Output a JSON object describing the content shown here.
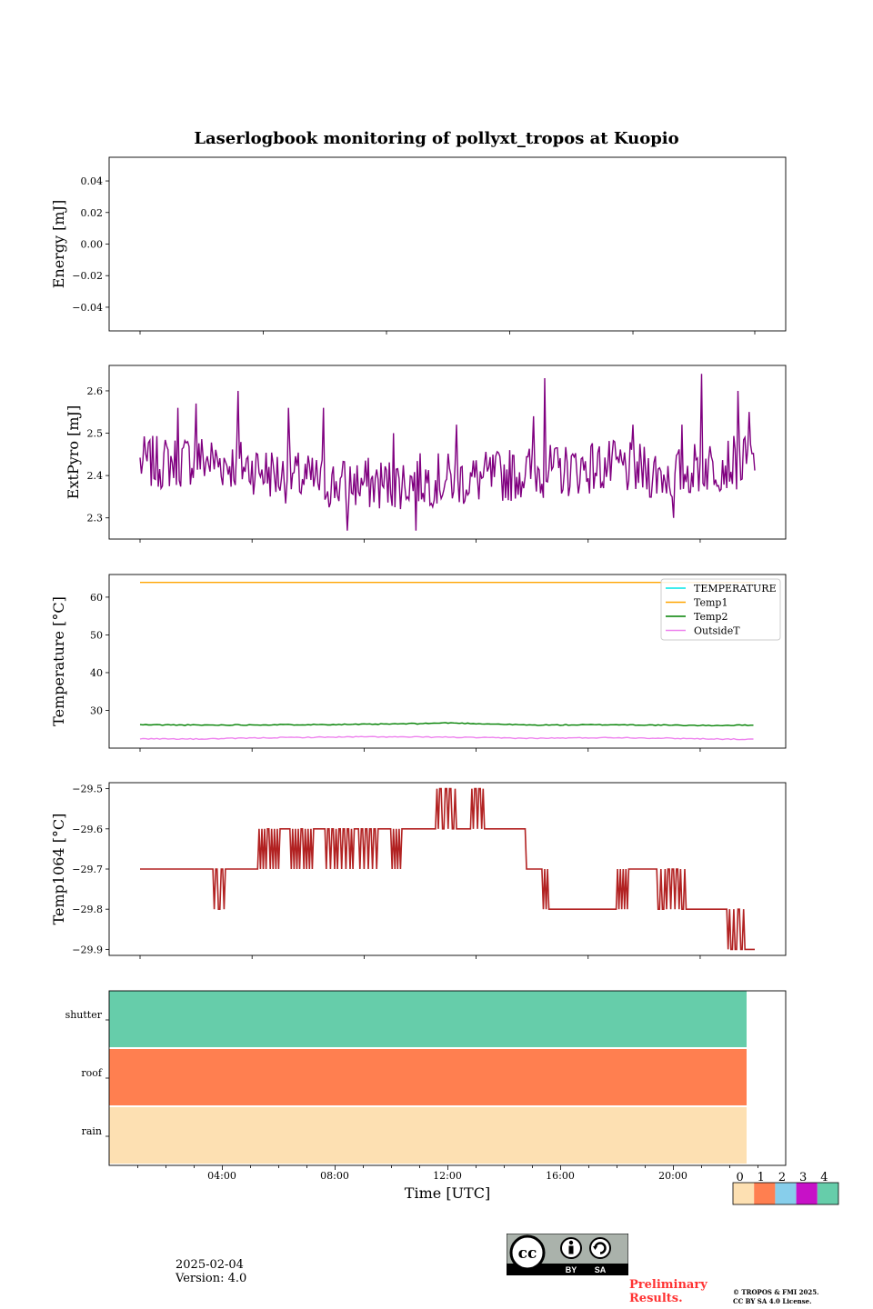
{
  "figure": {
    "title": "Laserlogbook monitoring of pollyxt_tropos at Kuopio",
    "date": "2025-02-04",
    "version": "Version: 4.0",
    "preliminary": [
      "Preliminary",
      "Results."
    ],
    "copyright": [
      "© TROPOS & FMI 2025.",
      "CC BY SA 4.0 License."
    ],
    "license_badge": {
      "by": "BY",
      "sa": "SA",
      "cc": "cc"
    }
  },
  "chart_data": [
    {
      "type": "line",
      "title": "Laserlogbook monitoring of pollyxt_tropos at Kuopio",
      "ylabel": "Energy [mJ]",
      "xlim": [
        0,
        24
      ],
      "ylim": [
        -0.055,
        0.055
      ],
      "yticks": [
        -0.04,
        -0.02,
        0.0,
        0.02,
        0.04
      ],
      "ytick_labels": [
        "−0.04",
        "−0.02",
        "0.00",
        "0.02",
        "0.04"
      ],
      "series": []
    },
    {
      "type": "line",
      "ylabel": "ExtPyro [mJ]",
      "xlim": [
        0,
        24
      ],
      "ylim": [
        2.25,
        2.66
      ],
      "yticks": [
        2.3,
        2.4,
        2.5,
        2.6
      ],
      "ytick_labels": [
        "2.3",
        "2.4",
        "2.5",
        "2.6"
      ],
      "series": [
        {
          "color": "#800080",
          "x_start": 1.0,
          "x_end": 22.95,
          "x_step": 0.05,
          "mean_profile": [
            [
              1.0,
              2.43
            ],
            [
              2.0,
              2.43
            ],
            [
              3.0,
              2.44
            ],
            [
              4.0,
              2.43
            ],
            [
              5.0,
              2.42
            ],
            [
              6.0,
              2.4
            ],
            [
              7.0,
              2.39
            ],
            [
              8.0,
              2.38
            ],
            [
              9.0,
              2.38
            ],
            [
              10.0,
              2.38
            ],
            [
              11.0,
              2.39
            ],
            [
              12.0,
              2.39
            ],
            [
              13.0,
              2.39
            ],
            [
              14.0,
              2.4
            ],
            [
              15.0,
              2.41
            ],
            [
              16.0,
              2.41
            ],
            [
              17.0,
              2.42
            ],
            [
              18.0,
              2.42
            ],
            [
              19.0,
              2.41
            ],
            [
              20.0,
              2.4
            ],
            [
              21.0,
              2.42
            ],
            [
              22.0,
              2.43
            ],
            [
              22.95,
              2.43
            ]
          ],
          "noise_amplitude": 0.08,
          "spikes": [
            [
              2.35,
              2.56
            ],
            [
              3.0,
              2.57
            ],
            [
              4.5,
              2.6
            ],
            [
              6.3,
              2.56
            ],
            [
              7.55,
              2.56
            ],
            [
              8.4,
              2.27
            ],
            [
              10.05,
              2.5
            ],
            [
              10.85,
              2.27
            ],
            [
              12.3,
              2.52
            ],
            [
              15.05,
              2.54
            ],
            [
              15.45,
              2.63
            ],
            [
              18.6,
              2.52
            ],
            [
              20.05,
              2.3
            ],
            [
              20.35,
              2.52
            ],
            [
              21.05,
              2.64
            ],
            [
              22.35,
              2.6
            ],
            [
              22.75,
              2.55
            ]
          ]
        }
      ]
    },
    {
      "type": "line",
      "ylabel": "Temperature [°C]",
      "xlim": [
        0,
        24
      ],
      "ylim": [
        20,
        66
      ],
      "yticks": [
        30,
        40,
        50,
        60
      ],
      "ytick_labels": [
        "30",
        "40",
        "50",
        "60"
      ],
      "legend": "top-right",
      "series": [
        {
          "name": "TEMPERATURE",
          "color": "#00e5e5",
          "x": [],
          "y": []
        },
        {
          "name": "Temp1",
          "color": "#ffa500",
          "x": [
            1.0,
            22.95
          ],
          "y": [
            63.9,
            63.9
          ]
        },
        {
          "name": "Temp2",
          "color": "#008000",
          "x": [
            1.0,
            3.0,
            6.0,
            9.0,
            11.0,
            12.0,
            13.0,
            15.0,
            18.0,
            21.0,
            22.95
          ],
          "y": [
            26.2,
            26.1,
            26.2,
            26.3,
            26.5,
            26.7,
            26.5,
            26.1,
            26.2,
            26.0,
            26.1
          ]
        },
        {
          "name": "OutsideT",
          "color": "#ee82ee",
          "x": [
            1.0,
            3.0,
            6.0,
            9.0,
            12.0,
            15.0,
            18.0,
            21.0,
            22.95
          ],
          "y": [
            22.5,
            22.4,
            22.8,
            23.0,
            22.9,
            22.6,
            22.8,
            22.5,
            22.3
          ]
        }
      ]
    },
    {
      "type": "line",
      "ylabel": "Temp1064 [°C]",
      "xlim": [
        0,
        24
      ],
      "ylim": [
        -29.915,
        -29.485
      ],
      "yticks": [
        -29.9,
        -29.8,
        -29.7,
        -29.6,
        -29.5
      ],
      "ytick_labels": [
        "−29.9",
        "−29.8",
        "−29.7",
        "−29.6",
        "−29.5"
      ],
      "series": [
        {
          "color": "#b22222",
          "base_levels": [
            [
              1.0,
              -29.7
            ],
            [
              5.2,
              -29.6
            ],
            [
              14.8,
              -29.7
            ],
            [
              15.7,
              -29.8
            ],
            [
              18.0,
              -29.7
            ],
            [
              20.5,
              -29.8
            ],
            [
              22.0,
              -29.9
            ],
            [
              22.95,
              -29.9
            ]
          ],
          "flicker_windows": [
            {
              "from": 3.5,
              "to": 4.05,
              "level": -29.8,
              "n": 8
            },
            {
              "from": 5.1,
              "to": 6.0,
              "level": -29.7,
              "n": 10
            },
            {
              "from": 6.3,
              "to": 7.2,
              "level": -29.7,
              "n": 10
            },
            {
              "from": 7.55,
              "to": 8.65,
              "level": -29.7,
              "n": 14
            },
            {
              "from": 8.75,
              "to": 9.5,
              "level": -29.7,
              "n": 10
            },
            {
              "from": 10.0,
              "to": 10.35,
              "level": -29.7,
              "n": 4
            },
            {
              "from": 11.6,
              "to": 12.3,
              "level": -29.5,
              "n": 10
            },
            {
              "from": 12.85,
              "to": 13.3,
              "level": -29.5,
              "n": 6
            },
            {
              "from": 15.4,
              "to": 15.9,
              "level": -29.8,
              "n": 6
            },
            {
              "from": 17.6,
              "to": 18.55,
              "level": -29.8,
              "n": 10
            },
            {
              "from": 19.5,
              "to": 21.2,
              "level": -29.8,
              "n": 12
            },
            {
              "from": 22.05,
              "to": 22.6,
              "level": -29.8,
              "n": 8
            }
          ]
        }
      ]
    },
    {
      "type": "heatmap",
      "xlabel": "Time [UTC]",
      "xlim": [
        0,
        24
      ],
      "xticks": [
        4,
        8,
        12,
        16,
        20
      ],
      "xtick_labels": [
        "04:00",
        "08:00",
        "12:00",
        "16:00",
        "20:00"
      ],
      "rows": [
        "shutter",
        "roof",
        "rain"
      ],
      "row_values": [
        4,
        1,
        0
      ],
      "x_end": 22.0,
      "colorbar": {
        "labels": [
          "0",
          "1",
          "2",
          "3",
          "4"
        ],
        "colors": [
          "#fde0b2",
          "#ff7f50",
          "#87ceeb",
          "#c711c7",
          "#66cdaa"
        ]
      }
    }
  ]
}
